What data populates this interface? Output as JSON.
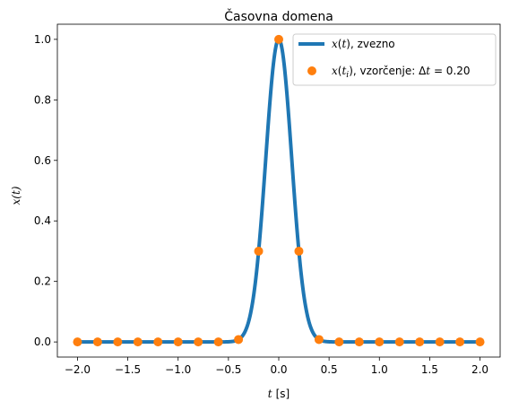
{
  "chart_data": {
    "type": "line",
    "title": "Časovna domena",
    "xlabel_var": "t",
    "xlabel_unit": "[s]",
    "ylabel": "x(t)",
    "xlim": [
      -2.2,
      2.2
    ],
    "ylim": [
      -0.05,
      1.05
    ],
    "xticks": [
      -2.0,
      -1.5,
      -1.0,
      -0.5,
      0.0,
      0.5,
      1.0,
      1.5,
      2.0
    ],
    "xtick_labels": [
      "−2.0",
      "−1.5",
      "−1.0",
      "−0.5",
      "0.0",
      "0.5",
      "1.0",
      "1.5",
      "2.0"
    ],
    "yticks": [
      0.0,
      0.2,
      0.4,
      0.6,
      0.8,
      1.0
    ],
    "ytick_labels": [
      "0.0",
      "0.2",
      "0.4",
      "0.6",
      "0.8",
      "1.0"
    ],
    "grid": false,
    "legend_position": "top-right",
    "series": [
      {
        "name": "x(t), zvezno",
        "kind": "line",
        "color": "#1f77b4",
        "function": "gaussian",
        "sigma": 0.1289,
        "x_range": [
          -2.0,
          2.0
        ]
      },
      {
        "name": "x(t_i), vzorčenje: Δt = 0.20",
        "kind": "scatter",
        "color": "#ff7f0e",
        "x": [
          -2.0,
          -1.8,
          -1.6,
          -1.4,
          -1.2,
          -1.0,
          -0.8,
          -0.6,
          -0.4,
          -0.2,
          0.0,
          0.2,
          0.4,
          0.6,
          0.8,
          1.0,
          1.2,
          1.4,
          1.6,
          1.8,
          2.0
        ],
        "y": [
          0.0,
          0.0,
          0.0,
          0.0,
          0.0,
          0.0,
          0.0,
          0.0,
          0.008,
          0.3,
          1.0,
          0.3,
          0.008,
          0.0,
          0.0,
          0.0,
          0.0,
          0.0,
          0.0,
          0.0,
          0.0
        ]
      }
    ]
  },
  "legend": {
    "line_name_suffix": ", zvezno",
    "scatter_name_mid": ", vzorčenje: ",
    "scatter_dt": "Δ",
    "scatter_dt_value": " = 0.20"
  }
}
